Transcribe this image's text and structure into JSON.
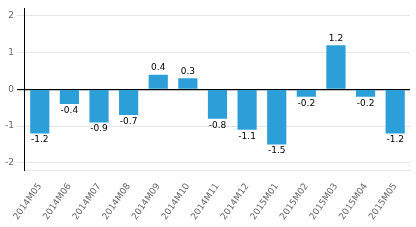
{
  "chart_data": {
    "type": "bar",
    "categories": [
      "2014M05",
      "2014M06",
      "2014M07",
      "2014M08",
      "2014M09",
      "2014M10",
      "2014M11",
      "2014M12",
      "2015M01",
      "2015M02",
      "2015M03",
      "2015M04",
      "2015M05"
    ],
    "values": [
      -1.2,
      -0.4,
      -0.9,
      -0.7,
      0.4,
      0.3,
      -0.8,
      -1.1,
      -1.5,
      -0.2,
      1.2,
      -0.2,
      -1.2
    ],
    "color": "#2d9fd8",
    "ylim": [
      -2.2,
      2.2
    ],
    "yticks": [
      -2,
      -1,
      0,
      1,
      2
    ],
    "grid": true,
    "data_labels": true
  }
}
